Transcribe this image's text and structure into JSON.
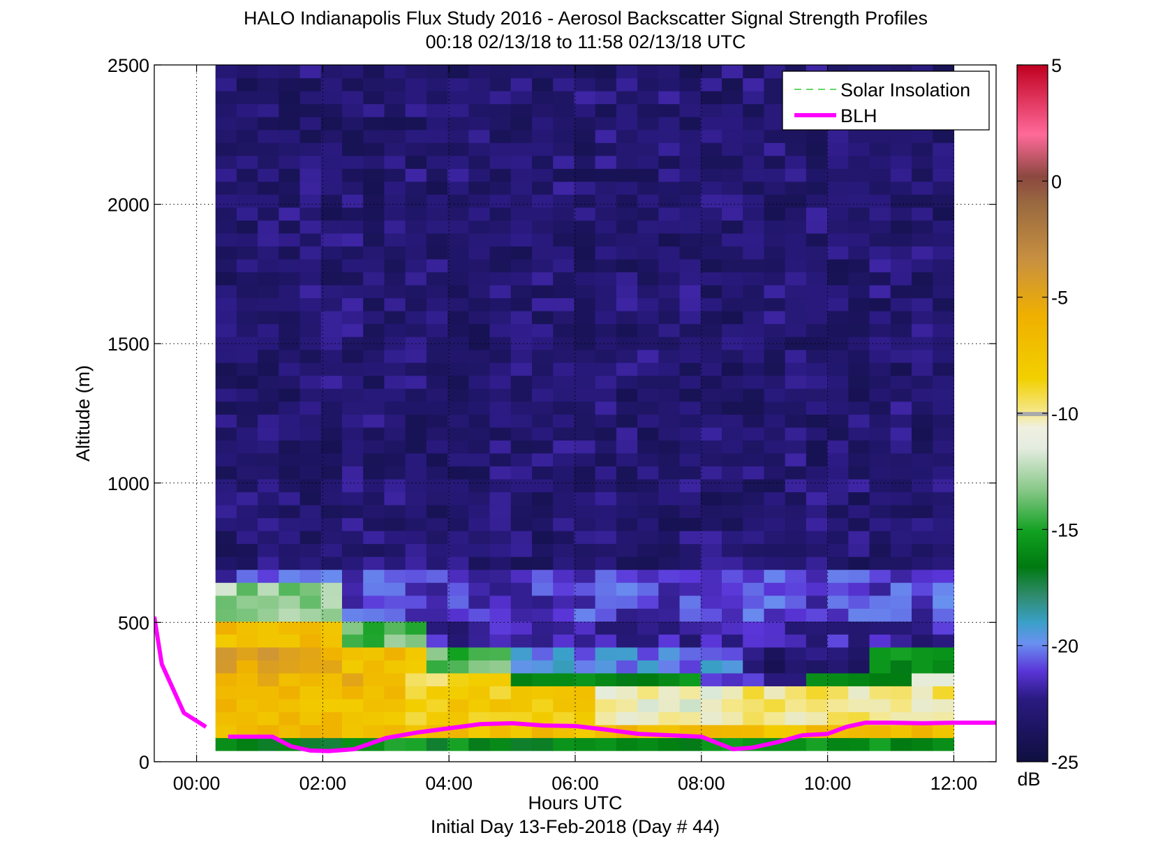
{
  "chart_data": {
    "type": "heatmap",
    "title": "HALO Indianapolis Flux Study 2016 - Aerosol Backscatter Signal Strength Profiles",
    "subtitle": "00:18 02/13/18 to 11:58 02/13/18  UTC",
    "xlabel": "Hours UTC",
    "xlabel2": "Initial Day 13-Feb-2018 (Day # 44)",
    "ylabel": "Altitude (m)",
    "xlim": [
      -0.67,
      12.67
    ],
    "ylim": [
      0,
      2500
    ],
    "x_ticks": [
      0,
      2,
      4,
      6,
      8,
      10,
      12
    ],
    "x_tick_labels": [
      "00:00",
      "02:00",
      "04:00",
      "06:00",
      "08:00",
      "10:00",
      "12:00"
    ],
    "y_ticks": [
      0,
      500,
      1000,
      1500,
      2000,
      2500
    ],
    "y_tick_labels": [
      "0",
      "500",
      "1000",
      "1500",
      "2000",
      "2500"
    ],
    "grid": "dotted",
    "colorbar": {
      "range": [
        -25,
        5
      ],
      "ticks": [
        5,
        0,
        -5,
        -10,
        -15,
        -20,
        -25
      ],
      "tick_labels": [
        "5",
        "0",
        "-5",
        "-10",
        "-15",
        "-20",
        "-25"
      ],
      "unit": "dB"
    },
    "legend": {
      "position": "top-right",
      "entries": [
        {
          "label": "Solar Insolation",
          "color": "#33cc33",
          "style": "dashed"
        },
        {
          "label": "BLH",
          "color": "#ff00ff",
          "style": "solid"
        }
      ]
    },
    "heatmap": {
      "x_start": 0.3,
      "x_end": 12.0,
      "n_cols": 35,
      "y_start": 40,
      "y_end": 2500,
      "n_rows": 53,
      "bands": [
        {
          "top": 90,
          "cols": [
            0,
            35
          ],
          "value": -16
        },
        {
          "top": 155,
          "cols": [
            0,
            35
          ],
          "value": -7
        },
        {
          "top": 255,
          "cols": [
            0,
            9
          ],
          "value": -7
        },
        {
          "top": 255,
          "cols": [
            9,
            18
          ],
          "value": -8
        },
        {
          "top": 255,
          "cols": [
            18,
            25
          ],
          "value": -11
        },
        {
          "top": 255,
          "cols": [
            25,
            35
          ],
          "value": -10
        },
        {
          "top": 320,
          "cols": [
            0,
            9
          ],
          "value": -6
        },
        {
          "top": 320,
          "cols": [
            9,
            14
          ],
          "value": -9
        },
        {
          "top": 320,
          "cols": [
            14,
            23
          ],
          "value": -16
        },
        {
          "top": 320,
          "cols": [
            23,
            28
          ],
          "value": -22
        },
        {
          "top": 320,
          "cols": [
            28,
            33
          ],
          "value": -16
        },
        {
          "top": 320,
          "cols": [
            33,
            35
          ],
          "value": -11
        },
        {
          "top": 420,
          "cols": [
            0,
            6
          ],
          "value": -5
        },
        {
          "top": 420,
          "cols": [
            6,
            10
          ],
          "value": -7
        },
        {
          "top": 420,
          "cols": [
            10,
            14
          ],
          "value": -14
        },
        {
          "top": 420,
          "cols": [
            14,
            25
          ],
          "value": -20
        },
        {
          "top": 420,
          "cols": [
            25,
            31
          ],
          "value": -23
        },
        {
          "top": 420,
          "cols": [
            31,
            35
          ],
          "value": -16
        },
        {
          "top": 520,
          "cols": [
            0,
            6
          ],
          "value": -7
        },
        {
          "top": 520,
          "cols": [
            6,
            10
          ],
          "value": -14
        },
        {
          "top": 520,
          "cols": [
            10,
            35
          ],
          "value": -22
        },
        {
          "top": 640,
          "cols": [
            0,
            6
          ],
          "value": -13
        },
        {
          "top": 640,
          "cols": [
            6,
            35
          ],
          "value": -21
        },
        {
          "top": 700,
          "cols": [
            0,
            35
          ],
          "value": -21
        },
        {
          "top": 2500,
          "cols": [
            0,
            35
          ],
          "value": -23
        }
      ]
    },
    "series": [
      {
        "name": "BLH",
        "x": [
          -0.67,
          -0.55,
          -0.2,
          0.15
        ],
        "y": [
          520,
          350,
          175,
          125
        ]
      },
      {
        "name": "BLH",
        "x": [
          0.5,
          1.2,
          1.5,
          1.8,
          2.1,
          2.5,
          3.0,
          3.5,
          4.0,
          4.5,
          5.0,
          5.5,
          6.0,
          6.5,
          7.0,
          7.5,
          8.0,
          8.5,
          8.8,
          9.2,
          9.6,
          10.0,
          10.3,
          10.6,
          11.0,
          11.5,
          12.0,
          12.67
        ],
        "y": [
          90,
          90,
          55,
          40,
          38,
          45,
          85,
          105,
          120,
          135,
          138,
          130,
          128,
          115,
          100,
          95,
          90,
          45,
          50,
          70,
          95,
          100,
          125,
          140,
          140,
          138,
          140,
          140
        ]
      }
    ]
  }
}
